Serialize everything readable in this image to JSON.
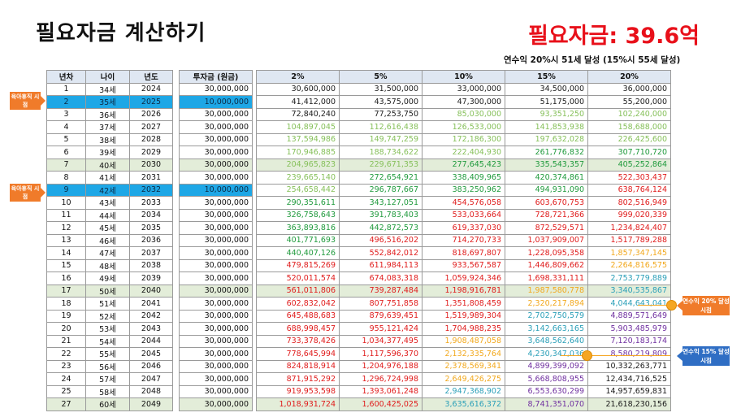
{
  "title": "필요자금 계산하기",
  "headline": "필요자금: 39.6억",
  "subtitle": "연수익 20%시 51세 달성 (15%시 55세 달성)",
  "left_table": {
    "headers": [
      "년차",
      "나이",
      "년도"
    ],
    "rows": [
      [
        "1",
        "34세",
        "2024"
      ],
      [
        "2",
        "35세",
        "2025"
      ],
      [
        "3",
        "36세",
        "2026"
      ],
      [
        "4",
        "37세",
        "2027"
      ],
      [
        "5",
        "38세",
        "2028"
      ],
      [
        "6",
        "39세",
        "2029"
      ],
      [
        "7",
        "40세",
        "2030"
      ],
      [
        "8",
        "41세",
        "2031"
      ],
      [
        "9",
        "42세",
        "2032"
      ],
      [
        "10",
        "43세",
        "2033"
      ],
      [
        "11",
        "44세",
        "2034"
      ],
      [
        "12",
        "45세",
        "2035"
      ],
      [
        "13",
        "46세",
        "2036"
      ],
      [
        "14",
        "47세",
        "2037"
      ],
      [
        "15",
        "48세",
        "2038"
      ],
      [
        "16",
        "49세",
        "2039"
      ],
      [
        "17",
        "50세",
        "2040"
      ],
      [
        "18",
        "51세",
        "2041"
      ],
      [
        "19",
        "52세",
        "2042"
      ],
      [
        "20",
        "53세",
        "2043"
      ],
      [
        "21",
        "54세",
        "2044"
      ],
      [
        "22",
        "55세",
        "2045"
      ],
      [
        "23",
        "56세",
        "2046"
      ],
      [
        "24",
        "57세",
        "2047"
      ],
      [
        "25",
        "58세",
        "2048"
      ],
      [
        "27",
        "60세",
        "2049"
      ]
    ]
  },
  "invest_table": {
    "header": "투자금 (원금)",
    "values": [
      "30,000,000",
      "10,000,000",
      "30,000,000",
      "30,000,000",
      "30,000,000",
      "30,000,000",
      "30,000,000",
      "30,000,000",
      "10,000,000",
      "30,000,000",
      "30,000,000",
      "30,000,000",
      "30,000,000",
      "30,000,000",
      "30,000,000",
      "30,000,000",
      "30,000,000",
      "30,000,000",
      "30,000,000",
      "30,000,000",
      "30,000,000",
      "30,000,000",
      "30,000,000",
      "30,000,000",
      "30,000,000",
      "30,000,000"
    ]
  },
  "returns_table": {
    "headers": [
      "2%",
      "5%",
      "10%",
      "15%",
      "20%"
    ],
    "rows": [
      [
        [
          "30,600,000",
          "black"
        ],
        [
          "31,500,000",
          "black"
        ],
        [
          "33,000,000",
          "black"
        ],
        [
          "34,500,000",
          "black"
        ],
        [
          "36,000,000",
          "black"
        ]
      ],
      [
        [
          "41,412,000",
          "black"
        ],
        [
          "43,575,000",
          "black"
        ],
        [
          "47,300,000",
          "black"
        ],
        [
          "51,175,000",
          "black"
        ],
        [
          "55,200,000",
          "black"
        ]
      ],
      [
        [
          "72,840,240",
          "black"
        ],
        [
          "77,253,750",
          "black"
        ],
        [
          "85,030,000",
          "lime"
        ],
        [
          "93,351,250",
          "lime"
        ],
        [
          "102,240,000",
          "lime"
        ]
      ],
      [
        [
          "104,897,045",
          "lime"
        ],
        [
          "112,616,438",
          "lime"
        ],
        [
          "126,533,000",
          "lime"
        ],
        [
          "141,853,938",
          "lime"
        ],
        [
          "158,688,000",
          "lime"
        ]
      ],
      [
        [
          "137,594,986",
          "lime"
        ],
        [
          "149,747,259",
          "lime"
        ],
        [
          "172,186,300",
          "lime"
        ],
        [
          "197,632,028",
          "lime"
        ],
        [
          "226,425,600",
          "lime"
        ]
      ],
      [
        [
          "170,946,885",
          "lime"
        ],
        [
          "188,734,622",
          "lime"
        ],
        [
          "222,404,930",
          "lime"
        ],
        [
          "261,776,832",
          "green"
        ],
        [
          "307,710,720",
          "green"
        ]
      ],
      [
        [
          "204,965,823",
          "lime"
        ],
        [
          "229,671,353",
          "lime"
        ],
        [
          "277,645,423",
          "green"
        ],
        [
          "335,543,357",
          "green"
        ],
        [
          "405,252,864",
          "green"
        ]
      ],
      [
        [
          "239,665,140",
          "lime"
        ],
        [
          "272,654,921",
          "green"
        ],
        [
          "338,409,965",
          "green"
        ],
        [
          "420,374,861",
          "green"
        ],
        [
          "522,303,437",
          "red"
        ]
      ],
      [
        [
          "254,658,442",
          "lime"
        ],
        [
          "296,787,667",
          "green"
        ],
        [
          "383,250,962",
          "green"
        ],
        [
          "494,931,090",
          "green"
        ],
        [
          "638,764,124",
          "red"
        ]
      ],
      [
        [
          "290,351,611",
          "green"
        ],
        [
          "343,127,051",
          "green"
        ],
        [
          "454,576,058",
          "red"
        ],
        [
          "603,670,753",
          "red"
        ],
        [
          "802,516,949",
          "red"
        ]
      ],
      [
        [
          "326,758,643",
          "green"
        ],
        [
          "391,783,403",
          "green"
        ],
        [
          "533,033,664",
          "red"
        ],
        [
          "728,721,366",
          "red"
        ],
        [
          "999,020,339",
          "red"
        ]
      ],
      [
        [
          "363,893,816",
          "green"
        ],
        [
          "442,872,573",
          "green"
        ],
        [
          "619,337,030",
          "red"
        ],
        [
          "872,529,571",
          "red"
        ],
        [
          "1,234,824,407",
          "red"
        ]
      ],
      [
        [
          "401,771,693",
          "green"
        ],
        [
          "496,516,202",
          "red"
        ],
        [
          "714,270,733",
          "red"
        ],
        [
          "1,037,909,007",
          "red"
        ],
        [
          "1,517,789,288",
          "red"
        ]
      ],
      [
        [
          "440,407,126",
          "green"
        ],
        [
          "552,842,012",
          "red"
        ],
        [
          "818,697,807",
          "red"
        ],
        [
          "1,228,095,358",
          "red"
        ],
        [
          "1,857,347,145",
          "orange"
        ]
      ],
      [
        [
          "479,815,269",
          "red"
        ],
        [
          "611,984,113",
          "red"
        ],
        [
          "933,567,587",
          "red"
        ],
        [
          "1,446,809,662",
          "red"
        ],
        [
          "2,264,816,575",
          "orange"
        ]
      ],
      [
        [
          "520,011,574",
          "red"
        ],
        [
          "674,083,318",
          "red"
        ],
        [
          "1,059,924,346",
          "red"
        ],
        [
          "1,698,331,111",
          "red"
        ],
        [
          "2,753,779,889",
          "teal"
        ]
      ],
      [
        [
          "561,011,806",
          "red"
        ],
        [
          "739,287,484",
          "red"
        ],
        [
          "1,198,916,781",
          "red"
        ],
        [
          "1,987,580,778",
          "orange"
        ],
        [
          "3,340,535,867",
          "teal"
        ]
      ],
      [
        [
          "602,832,042",
          "red"
        ],
        [
          "807,751,858",
          "red"
        ],
        [
          "1,351,808,459",
          "red"
        ],
        [
          "2,320,217,894",
          "orange"
        ],
        [
          "4,044,643,041",
          "teal"
        ]
      ],
      [
        [
          "645,488,683",
          "red"
        ],
        [
          "879,639,451",
          "red"
        ],
        [
          "1,519,989,304",
          "red"
        ],
        [
          "2,702,750,579",
          "teal"
        ],
        [
          "4,889,571,649",
          "purple"
        ]
      ],
      [
        [
          "688,998,457",
          "red"
        ],
        [
          "955,121,424",
          "red"
        ],
        [
          "1,704,988,235",
          "red"
        ],
        [
          "3,142,663,165",
          "teal"
        ],
        [
          "5,903,485,979",
          "purple"
        ]
      ],
      [
        [
          "733,378,426",
          "red"
        ],
        [
          "1,034,377,495",
          "red"
        ],
        [
          "1,908,487,058",
          "orange"
        ],
        [
          "3,648,562,640",
          "teal"
        ],
        [
          "7,120,183,174",
          "purple"
        ]
      ],
      [
        [
          "778,645,994",
          "red"
        ],
        [
          "1,117,596,370",
          "red"
        ],
        [
          "2,132,335,764",
          "orange"
        ],
        [
          "4,230,347,036",
          "teal"
        ],
        [
          "8,580,219,809",
          "purple"
        ]
      ],
      [
        [
          "824,818,914",
          "red"
        ],
        [
          "1,204,976,188",
          "red"
        ],
        [
          "2,378,569,341",
          "orange"
        ],
        [
          "4,899,399,092",
          "purple"
        ],
        [
          "10,332,263,771",
          "black"
        ]
      ],
      [
        [
          "871,915,292",
          "red"
        ],
        [
          "1,296,724,998",
          "red"
        ],
        [
          "2,649,426,275",
          "orange"
        ],
        [
          "5,668,808,955",
          "purple"
        ],
        [
          "12,434,716,525",
          "black"
        ]
      ],
      [
        [
          "919,953,598",
          "red"
        ],
        [
          "1,393,061,248",
          "red"
        ],
        [
          "2,947,368,902",
          "teal"
        ],
        [
          "6,553,630,299",
          "purple"
        ],
        [
          "14,957,659,831",
          "black"
        ]
      ],
      [
        [
          "1,018,931,724",
          "red"
        ],
        [
          "1,600,425,025",
          "red"
        ],
        [
          "3,635,616,372",
          "teal"
        ],
        [
          "8,741,351,070",
          "purple"
        ],
        [
          "21,618,230,156",
          "black"
        ]
      ]
    ]
  },
  "markers": {
    "left_tag_1": "육아휴직 시점",
    "left_tag_2": "육아휴직 시점",
    "right_tag_1": "연수익 20% 달성시점",
    "right_tag_2": "연수익 15% 달성시점"
  },
  "colors": {
    "headline_red": "#e8101a",
    "highlight_blue": "#1ea7e6",
    "highlight_green": "#e3edd9",
    "marker_orange": "#f07b2a",
    "marker_blue": "#2f6ec4"
  }
}
